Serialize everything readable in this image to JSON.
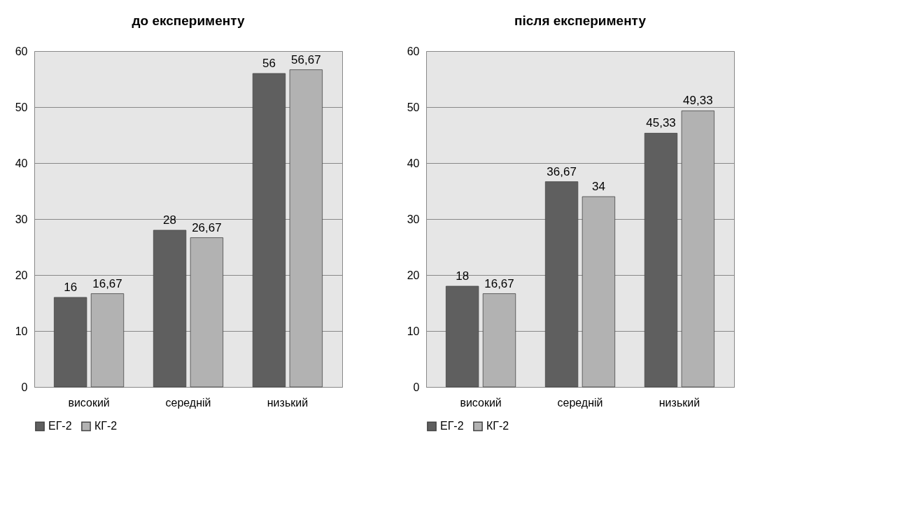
{
  "chart_data": [
    {
      "type": "bar",
      "title": "до експерименту",
      "categories": [
        "високий",
        "середній",
        "низький"
      ],
      "series": [
        {
          "name": "ЕГ-2",
          "color": "#5f5f5f",
          "values": [
            16,
            28,
            56
          ],
          "value_labels": [
            "16",
            "28",
            "56"
          ]
        },
        {
          "name": "КГ-2",
          "color": "#b2b2b2",
          "values": [
            16.67,
            26.67,
            56.67
          ],
          "value_labels": [
            "16,67",
            "26,67",
            "56,67"
          ]
        }
      ],
      "ylim": [
        0,
        60
      ],
      "yticks": [
        0,
        10,
        20,
        30,
        40,
        50,
        60
      ],
      "grid": "y",
      "legend": "bottom"
    },
    {
      "type": "bar",
      "title": "після експерименту",
      "categories": [
        "високий",
        "середній",
        "низький"
      ],
      "series": [
        {
          "name": "ЕГ-2",
          "color": "#5f5f5f",
          "values": [
            18,
            36.67,
            45.33
          ],
          "value_labels": [
            "18",
            "36,67",
            "45,33"
          ]
        },
        {
          "name": "КГ-2",
          "color": "#b2b2b2",
          "values": [
            16.67,
            34,
            49.33
          ],
          "value_labels": [
            "16,67",
            "34",
            "49,33"
          ]
        }
      ],
      "ylim": [
        0,
        60
      ],
      "yticks": [
        0,
        10,
        20,
        30,
        40,
        50,
        60
      ],
      "grid": "y",
      "legend": "bottom"
    }
  ]
}
